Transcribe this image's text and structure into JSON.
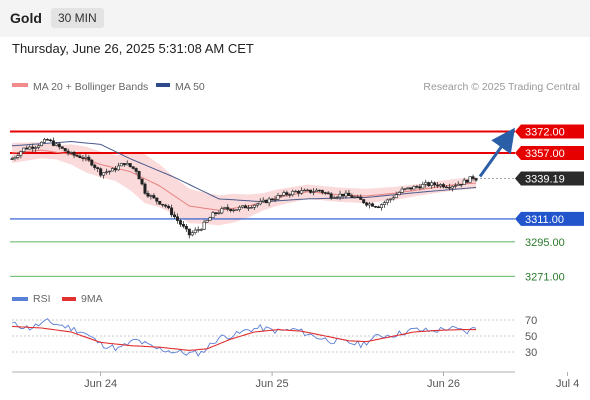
{
  "header": {
    "instrument": "Gold",
    "timeframe": "30 MIN"
  },
  "timestamp": "Thursday, June 26, 2025 5:31:08 AM CET",
  "legend": {
    "ma20": "MA 20 + Bollinger Bands",
    "ma50": "MA 50",
    "credit": "Research © 2025 Trading Central"
  },
  "rsi_legend": {
    "rsi": "RSI",
    "ma9": "9MA"
  },
  "colors": {
    "resistance": "#e60000",
    "pivot": "#2255cc",
    "support": "#2a9d2a",
    "arrow": "#2a5fa8",
    "ma20_band": "#f5b5b5",
    "ma50": "#4a5a8c",
    "rsi": "#5a7fd6",
    "rsi_ma": "#e03030"
  },
  "chart_data": [
    {
      "type": "candlestick",
      "levels": [
        {
          "value": 3372.0,
          "label": "3372.00",
          "kind": "resistance"
        },
        {
          "value": 3357.0,
          "label": "3357.00",
          "kind": "resistance"
        },
        {
          "value": 3339.19,
          "label": "3339.19",
          "kind": "last"
        },
        {
          "value": 3311.0,
          "label": "3311.00",
          "kind": "pivot"
        },
        {
          "value": 3295.0,
          "label": "3295.00",
          "kind": "support"
        },
        {
          "value": 3271.0,
          "label": "3271.00",
          "kind": "support"
        }
      ],
      "x_ticks": [
        "Jun 24",
        "Jun 25",
        "Jun 26",
        "Jul 4"
      ],
      "ylim": [
        3267,
        3387
      ],
      "close_anchors": [
        [
          0,
          3353
        ],
        [
          4,
          3360
        ],
        [
          8,
          3362
        ],
        [
          12,
          3366
        ],
        [
          16,
          3361
        ],
        [
          20,
          3356
        ],
        [
          24,
          3354
        ],
        [
          27,
          3350
        ],
        [
          30,
          3343
        ],
        [
          34,
          3345
        ],
        [
          38,
          3350
        ],
        [
          42,
          3345
        ],
        [
          45,
          3330
        ],
        [
          48,
          3325
        ],
        [
          52,
          3320
        ],
        [
          56,
          3310
        ],
        [
          60,
          3300
        ],
        [
          64,
          3305
        ],
        [
          68,
          3314
        ],
        [
          72,
          3318
        ],
        [
          76,
          3318
        ],
        [
          80,
          3320
        ],
        [
          84,
          3322
        ],
        [
          88,
          3325
        ],
        [
          92,
          3328
        ],
        [
          96,
          3330
        ],
        [
          100,
          3330
        ],
        [
          104,
          3331
        ],
        [
          108,
          3327
        ],
        [
          112,
          3328
        ],
        [
          116,
          3326
        ],
        [
          120,
          3322
        ],
        [
          124,
          3320
        ],
        [
          128,
          3325
        ],
        [
          132,
          3331
        ],
        [
          136,
          3333
        ],
        [
          140,
          3335
        ],
        [
          144,
          3335
        ],
        [
          148,
          3334
        ],
        [
          152,
          3336
        ],
        [
          156,
          3340
        ],
        [
          157,
          3339.19
        ]
      ],
      "ma20_anchors": [
        [
          0,
          3357
        ],
        [
          10,
          3359
        ],
        [
          20,
          3356
        ],
        [
          30,
          3349
        ],
        [
          40,
          3344
        ],
        [
          50,
          3334
        ],
        [
          60,
          3320
        ],
        [
          70,
          3317
        ],
        [
          80,
          3320
        ],
        [
          90,
          3326
        ],
        [
          100,
          3330
        ],
        [
          110,
          3328
        ],
        [
          120,
          3327
        ],
        [
          130,
          3329
        ],
        [
          140,
          3332
        ],
        [
          150,
          3335
        ],
        [
          157,
          3336
        ]
      ],
      "band_halfwidth_anchors": [
        [
          0,
          7
        ],
        [
          15,
          5
        ],
        [
          25,
          9
        ],
        [
          35,
          9
        ],
        [
          45,
          17
        ],
        [
          55,
          13
        ],
        [
          65,
          11
        ],
        [
          75,
          10
        ],
        [
          85,
          6
        ],
        [
          100,
          5
        ],
        [
          120,
          5
        ],
        [
          140,
          4
        ],
        [
          157,
          4
        ]
      ],
      "ma50_anchors": [
        [
          0,
          3362
        ],
        [
          20,
          3365
        ],
        [
          30,
          3363
        ],
        [
          40,
          3353
        ],
        [
          55,
          3340
        ],
        [
          70,
          3325
        ],
        [
          85,
          3323
        ],
        [
          100,
          3325
        ],
        [
          120,
          3326
        ],
        [
          140,
          3330
        ],
        [
          157,
          3333
        ]
      ],
      "projection": {
        "from": 3339.19,
        "to": 3372.0
      }
    },
    {
      "type": "line",
      "name": "RSI",
      "y_ticks": [
        "70",
        "50",
        "30"
      ],
      "ylim": [
        10,
        80
      ],
      "rsi_anchors": [
        [
          0,
          65
        ],
        [
          6,
          60
        ],
        [
          12,
          68
        ],
        [
          18,
          62
        ],
        [
          24,
          55
        ],
        [
          30,
          40
        ],
        [
          36,
          34
        ],
        [
          42,
          45
        ],
        [
          48,
          35
        ],
        [
          54,
          31
        ],
        [
          60,
          28
        ],
        [
          64,
          29
        ],
        [
          70,
          48
        ],
        [
          76,
          52
        ],
        [
          80,
          58
        ],
        [
          84,
          60
        ],
        [
          90,
          56
        ],
        [
          96,
          58
        ],
        [
          102,
          50
        ],
        [
          108,
          44
        ],
        [
          114,
          42
        ],
        [
          118,
          39
        ],
        [
          124,
          50
        ],
        [
          130,
          52
        ],
        [
          136,
          58
        ],
        [
          142,
          56
        ],
        [
          148,
          60
        ],
        [
          154,
          55
        ],
        [
          157,
          61
        ]
      ],
      "ma9_anchors": [
        [
          0,
          62
        ],
        [
          10,
          60
        ],
        [
          20,
          55
        ],
        [
          30,
          42
        ],
        [
          40,
          38
        ],
        [
          50,
          36
        ],
        [
          60,
          32
        ],
        [
          66,
          34
        ],
        [
          74,
          46
        ],
        [
          82,
          55
        ],
        [
          90,
          58
        ],
        [
          98,
          56
        ],
        [
          106,
          50
        ],
        [
          114,
          44
        ],
        [
          120,
          43
        ],
        [
          128,
          49
        ],
        [
          136,
          55
        ],
        [
          144,
          57
        ],
        [
          152,
          58
        ],
        [
          157,
          58
        ]
      ]
    }
  ]
}
